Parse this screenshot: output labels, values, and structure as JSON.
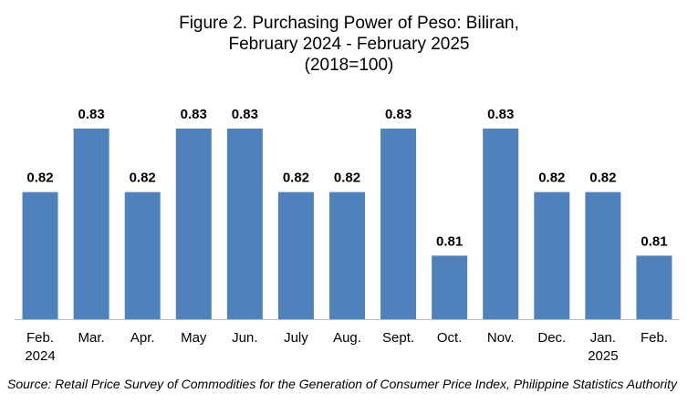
{
  "chart_data": {
    "type": "bar",
    "title_lines": [
      "Figure 2. Purchasing Power of Peso: Biliran,",
      "February 2024 - February 2025",
      "(2018=100)"
    ],
    "categories": [
      [
        "Feb.",
        "2024"
      ],
      [
        "Mar."
      ],
      [
        "Apr."
      ],
      [
        "May"
      ],
      [
        "Jun."
      ],
      [
        "July"
      ],
      [
        "Aug."
      ],
      [
        "Sept."
      ],
      [
        "Oct."
      ],
      [
        "Nov."
      ],
      [
        "Dec."
      ],
      [
        "Jan.",
        "2025"
      ],
      [
        "Feb."
      ]
    ],
    "values": [
      0.82,
      0.83,
      0.82,
      0.83,
      0.83,
      0.82,
      0.82,
      0.83,
      0.81,
      0.83,
      0.82,
      0.82,
      0.81
    ],
    "value_labels": [
      "0.82",
      "0.83",
      "0.82",
      "0.83",
      "0.83",
      "0.82",
      "0.82",
      "0.83",
      "0.81",
      "0.83",
      "0.82",
      "0.82",
      "0.81"
    ],
    "bar_color": "#4f81bd",
    "ylim": [
      0.8,
      0.83
    ],
    "grid": false,
    "legend": "none"
  },
  "source": "Source: Retail Price Survey of Commodities for the Generation of Consumer Price Index, Philippine Statistics Authority"
}
